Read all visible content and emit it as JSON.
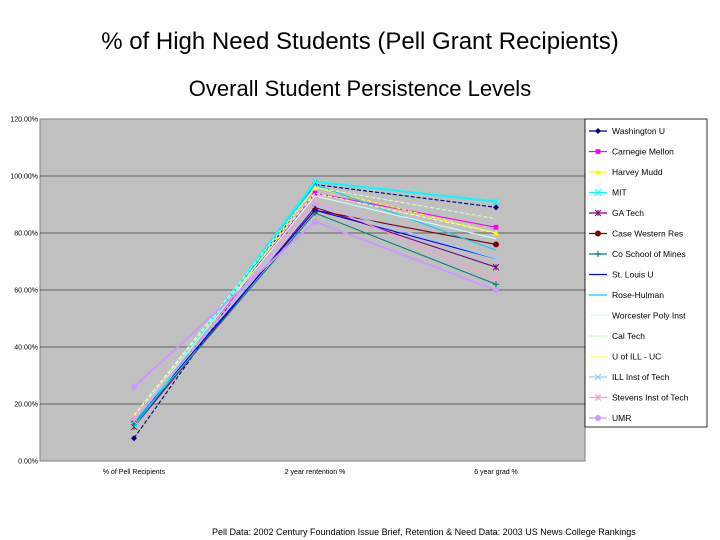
{
  "title": "% of High Need Students (Pell Grant Recipients)",
  "subtitle": "Overall Student Persistence Levels",
  "footer": "Pell Data: 2002 Century Foundation Issue Brief,  Retention & Need Data: 2003 US News College Rankings",
  "chart_data": {
    "type": "line",
    "title": "% of High Need Students (Pell Grant Recipients)",
    "subtitle": "Overall Student Persistence Levels",
    "categories": [
      "% of Pell Recipients",
      "2 year rentention %",
      "6 year grad %"
    ],
    "y_ticks": [
      "0.00%",
      "20.00%",
      "40.00%",
      "60.00%",
      "80.00%",
      "100.00%",
      "120.00%"
    ],
    "ylim": [
      0,
      120
    ],
    "grid": true,
    "plot_background": "#c0c0c0",
    "legend_position": "right",
    "series": [
      {
        "name": "Washington U",
        "values": [
          8,
          97,
          89
        ],
        "color": "#000080",
        "marker": "diamond"
      },
      {
        "name": "Carnegie Mellon",
        "values": [
          13,
          94,
          82
        ],
        "color": "#ff00ff",
        "marker": "square"
      },
      {
        "name": "Harvey Mudd",
        "values": [
          12,
          96,
          80
        ],
        "color": "#ffff00",
        "marker": "triangle"
      },
      {
        "name": "MIT",
        "values": [
          13,
          98,
          91
        ],
        "color": "#00ffff",
        "marker": "x"
      },
      {
        "name": "GA Tech",
        "values": [
          12,
          89,
          68
        ],
        "color": "#800080",
        "marker": "star"
      },
      {
        "name": "Case Western Res",
        "values": [
          14,
          88,
          76
        ],
        "color": "#800000",
        "marker": "circle"
      },
      {
        "name": "Co School of Mines",
        "values": [
          13,
          87,
          62
        ],
        "color": "#008080",
        "marker": "plus"
      },
      {
        "name": "St. Louis U",
        "values": [
          14,
          88,
          71
        ],
        "color": "#0000ff",
        "marker": "none"
      },
      {
        "name": "Rose-Hulman",
        "values": [
          12,
          97,
          74
        ],
        "color": "#00ccff",
        "marker": "none"
      },
      {
        "name": "Worcester Poly Inst",
        "values": [
          15,
          93,
          78
        ],
        "color": "#ccffff",
        "marker": "none"
      },
      {
        "name": "Cal Tech",
        "values": [
          16,
          96,
          85
        ],
        "color": "#ccffcc",
        "marker": "none"
      },
      {
        "name": "U of ILL - UC",
        "values": [
          16,
          94,
          80
        ],
        "color": "#ffff99",
        "marker": "none"
      },
      {
        "name": "ILL Inst of Tech",
        "values": [
          14,
          90,
          71
        ],
        "color": "#99ccff",
        "marker": "x"
      },
      {
        "name": "Stevens Inst of Tech",
        "values": [
          15,
          91,
          64
        ],
        "color": "#ff99cc",
        "marker": "star"
      },
      {
        "name": "UMR",
        "values": [
          26,
          84,
          60
        ],
        "color": "#cc99ff",
        "marker": "circle"
      }
    ]
  }
}
